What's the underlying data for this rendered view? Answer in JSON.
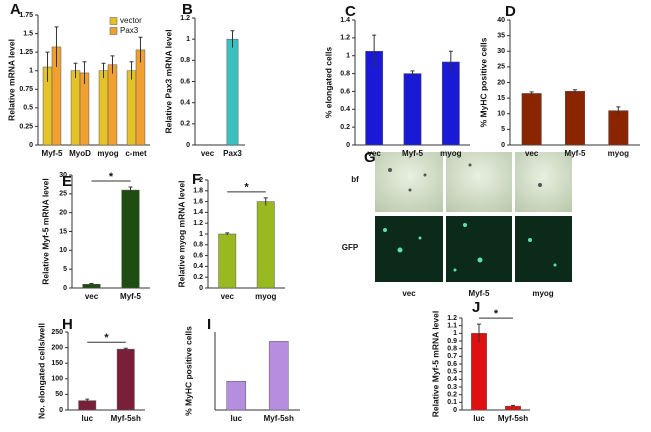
{
  "chart_data": [
    {
      "type": "bar",
      "panel": "A",
      "y_label": "Relative mRNA level",
      "categories": [
        "Myf-5",
        "MyoD",
        "myog",
        "c-met"
      ],
      "series": [
        {
          "name": "vector",
          "color": "#e6c229",
          "values": [
            1.05,
            1.0,
            1.0,
            1.0
          ],
          "errors": [
            0.2,
            0.1,
            0.1,
            0.12
          ]
        },
        {
          "name": "Pax3",
          "color": "#f0a030",
          "values": [
            1.32,
            0.97,
            1.08,
            1.28
          ],
          "errors": [
            0.27,
            0.15,
            0.12,
            0.17
          ]
        }
      ],
      "ylim": [
        0,
        1.75
      ],
      "yticks": [
        0,
        0.25,
        0.5,
        0.75,
        1,
        1.25,
        1.5,
        1.75
      ],
      "legend": "top-right"
    },
    {
      "type": "bar",
      "panel": "B",
      "y_label": "Relative Pax3 mRNA level",
      "categories": [
        "vec",
        "Pax3"
      ],
      "color": "#3cbfbf",
      "values": [
        0,
        1.0
      ],
      "errors": [
        0,
        0.08
      ],
      "ylim": [
        0,
        1.2
      ],
      "yticks": [
        0,
        0.2,
        0.4,
        0.6,
        0.8,
        1,
        1.2
      ]
    },
    {
      "type": "bar",
      "panel": "C",
      "y_label": "% elongated cells",
      "categories": [
        "vec",
        "Myf-5",
        "myog"
      ],
      "color": "#1a1ad6",
      "values": [
        1.05,
        0.8,
        0.93
      ],
      "errors": [
        0.18,
        0.03,
        0.12
      ],
      "ylim": [
        0,
        1.4
      ],
      "yticks": [
        0,
        0.2,
        0.4,
        0.6,
        0.8,
        1,
        1.2,
        1.4
      ]
    },
    {
      "type": "bar",
      "panel": "D",
      "y_label": "% MyHC positive cells",
      "categories": [
        "vec",
        "Myf-5",
        "myog"
      ],
      "color": "#8b2500",
      "values": [
        16.5,
        17.2,
        11
      ],
      "errors": [
        0.5,
        0.5,
        1.2
      ],
      "ylim": [
        0,
        40
      ],
      "yticks": [
        0,
        5,
        10,
        15,
        20,
        25,
        30,
        35,
        40
      ]
    },
    {
      "type": "bar",
      "panel": "E",
      "y_label": "Relative Myf-5 mRNA level",
      "categories": [
        "vec",
        "Myf-5"
      ],
      "color": "#1e4d12",
      "values": [
        1,
        26
      ],
      "errors": [
        0.2,
        0.8
      ],
      "ylim": [
        0,
        30
      ],
      "yticks": [
        0,
        5,
        10,
        15,
        20,
        25,
        30
      ],
      "annotation": "*"
    },
    {
      "type": "bar",
      "panel": "F",
      "y_label": "Relative myog mRNA level",
      "categories": [
        "vec",
        "myog"
      ],
      "color": "#9ab820",
      "values": [
        1.0,
        1.6
      ],
      "errors": [
        0.02,
        0.07
      ],
      "ylim": [
        0,
        2
      ],
      "yticks": [
        0,
        0.2,
        0.4,
        0.6,
        0.8,
        1,
        1.2,
        1.4,
        1.6,
        1.8,
        2
      ],
      "annotation": "*"
    },
    {
      "type": "bar",
      "panel": "H",
      "y_label": "No. elongated cells/well",
      "categories": [
        "luc",
        "Myf-5sh"
      ],
      "color": "#7a1f3a",
      "values": [
        30,
        195
      ],
      "errors": [
        5,
        3
      ],
      "ylim": [
        0,
        250
      ],
      "yticks": [
        0,
        50,
        100,
        150,
        200,
        250
      ],
      "annotation": "*"
    },
    {
      "type": "bar",
      "panel": "I",
      "y_label": "% MyHC positive cells",
      "categories": [
        "luc",
        "Myf-5sh"
      ],
      "color": "#b58ee0",
      "values": [
        9.2,
        22
      ],
      "ylim": [
        0,
        25
      ]
    },
    {
      "type": "bar",
      "panel": "J",
      "y_label": "Relative Myf-5 mRNA level",
      "categories": [
        "luc",
        "Myf-5sh"
      ],
      "color": "#e01010",
      "values": [
        1.0,
        0.05
      ],
      "errors": [
        0.12,
        0.01
      ],
      "ylim": [
        0,
        1.2
      ],
      "yticks": [
        0,
        0.1,
        0.2,
        0.3,
        0.4,
        0.5,
        0.6,
        0.7,
        0.8,
        0.9,
        1,
        1.1,
        1.2
      ],
      "annotation": "*"
    }
  ],
  "image_panel": {
    "panel": "G",
    "rows": [
      "bf",
      "GFP"
    ],
    "columns": [
      "vec",
      "Myf-5",
      "myog"
    ]
  }
}
